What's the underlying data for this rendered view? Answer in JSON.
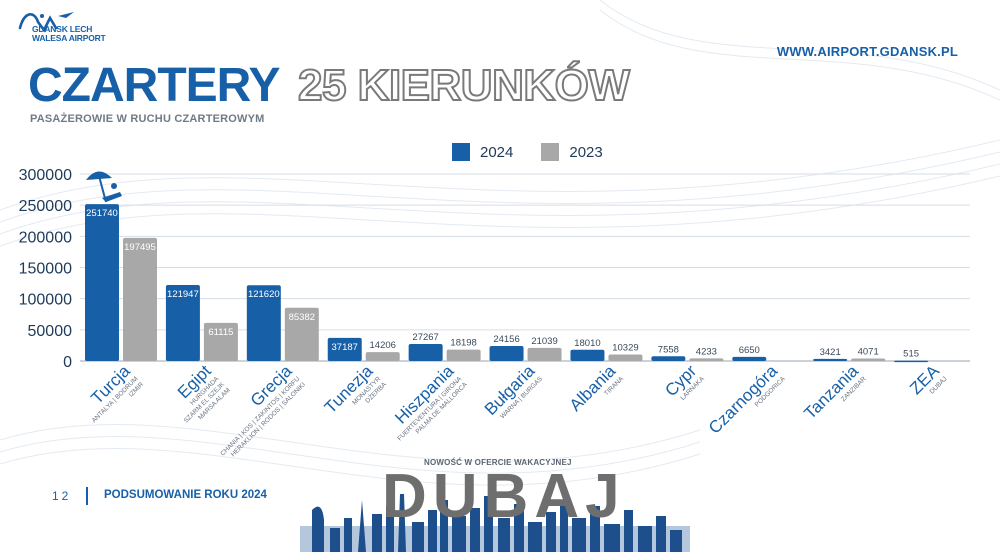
{
  "brand": {
    "logo_line1": "GDANSK LECH",
    "logo_line2": "WALESA AIRPORT",
    "url": "WWW.AIRPORT.GDANSK.PL"
  },
  "header": {
    "title": "CZARTERY",
    "title_outline": "25 KIERUNKÓW",
    "subtitle": "PASAŻEROWIE W RUCHU CZARTEROWYM"
  },
  "colors": {
    "primary": "#1760a8",
    "secondary": "#a8a8a8"
  },
  "chart_data": {
    "type": "bar",
    "title": "",
    "xlabel": "",
    "ylabel": "",
    "ylim": [
      0,
      300000
    ],
    "yticks": [
      "300000",
      "250000",
      "200000",
      "150000",
      "100000",
      "50000",
      "0"
    ],
    "grid": true,
    "legend_position": "top-center",
    "categories": [
      "Turcja",
      "Egipt",
      "Grecja",
      "Tunezja",
      "Hiszpania",
      "Bułgaria",
      "Albania",
      "Cypr",
      "Czarnogóra",
      "Tanzania",
      "ZEA"
    ],
    "sublabels": [
      [
        "ANTALYA | BODRUM",
        "IZMIR"
      ],
      [
        "HURGHADA",
        "SZARM EL SZEJK",
        "MARSA ALAM"
      ],
      [
        "CHANIA | KOS | ZAKINTOS | KORFU",
        "HERAKLION | RODOS | SALONIKI"
      ],
      [
        "MONASTYR",
        "DŻERBA"
      ],
      [
        "FUERTEVENTURA | GIRONA",
        "PALMA DE MALLORCA"
      ],
      [
        "WARNA | BURGAS"
      ],
      [
        "TIRANA"
      ],
      [
        "LARNAKA"
      ],
      [
        "PODGORICA"
      ],
      [
        "ZANZIBAR"
      ],
      [
        "DUBAJ"
      ]
    ],
    "series": [
      {
        "name": "2024",
        "values": [
          251740,
          121947,
          121620,
          37187,
          27267,
          24156,
          18010,
          7558,
          6650,
          3421,
          515
        ]
      },
      {
        "name": "2023",
        "values": [
          197495,
          61115,
          85382,
          14206,
          18198,
          21039,
          10329,
          4233,
          null,
          4071,
          null
        ]
      }
    ],
    "value_labels": [
      [
        "251740",
        "121947",
        "121620",
        "37187",
        "27267",
        "24156",
        "18010",
        "7558",
        "6650",
        "3421",
        "515"
      ],
      [
        "197495",
        "61115",
        "85382",
        "14206",
        "18198",
        "21039",
        "10329",
        "4233",
        "",
        "4071",
        ""
      ]
    ]
  },
  "promo": {
    "label": "NOWOŚĆ W OFERCIE WAKACYJNEJ",
    "destination": "DUBAJ"
  },
  "footer": {
    "page": "12",
    "text": "PODSUMOWANIE ROKU 2024"
  }
}
